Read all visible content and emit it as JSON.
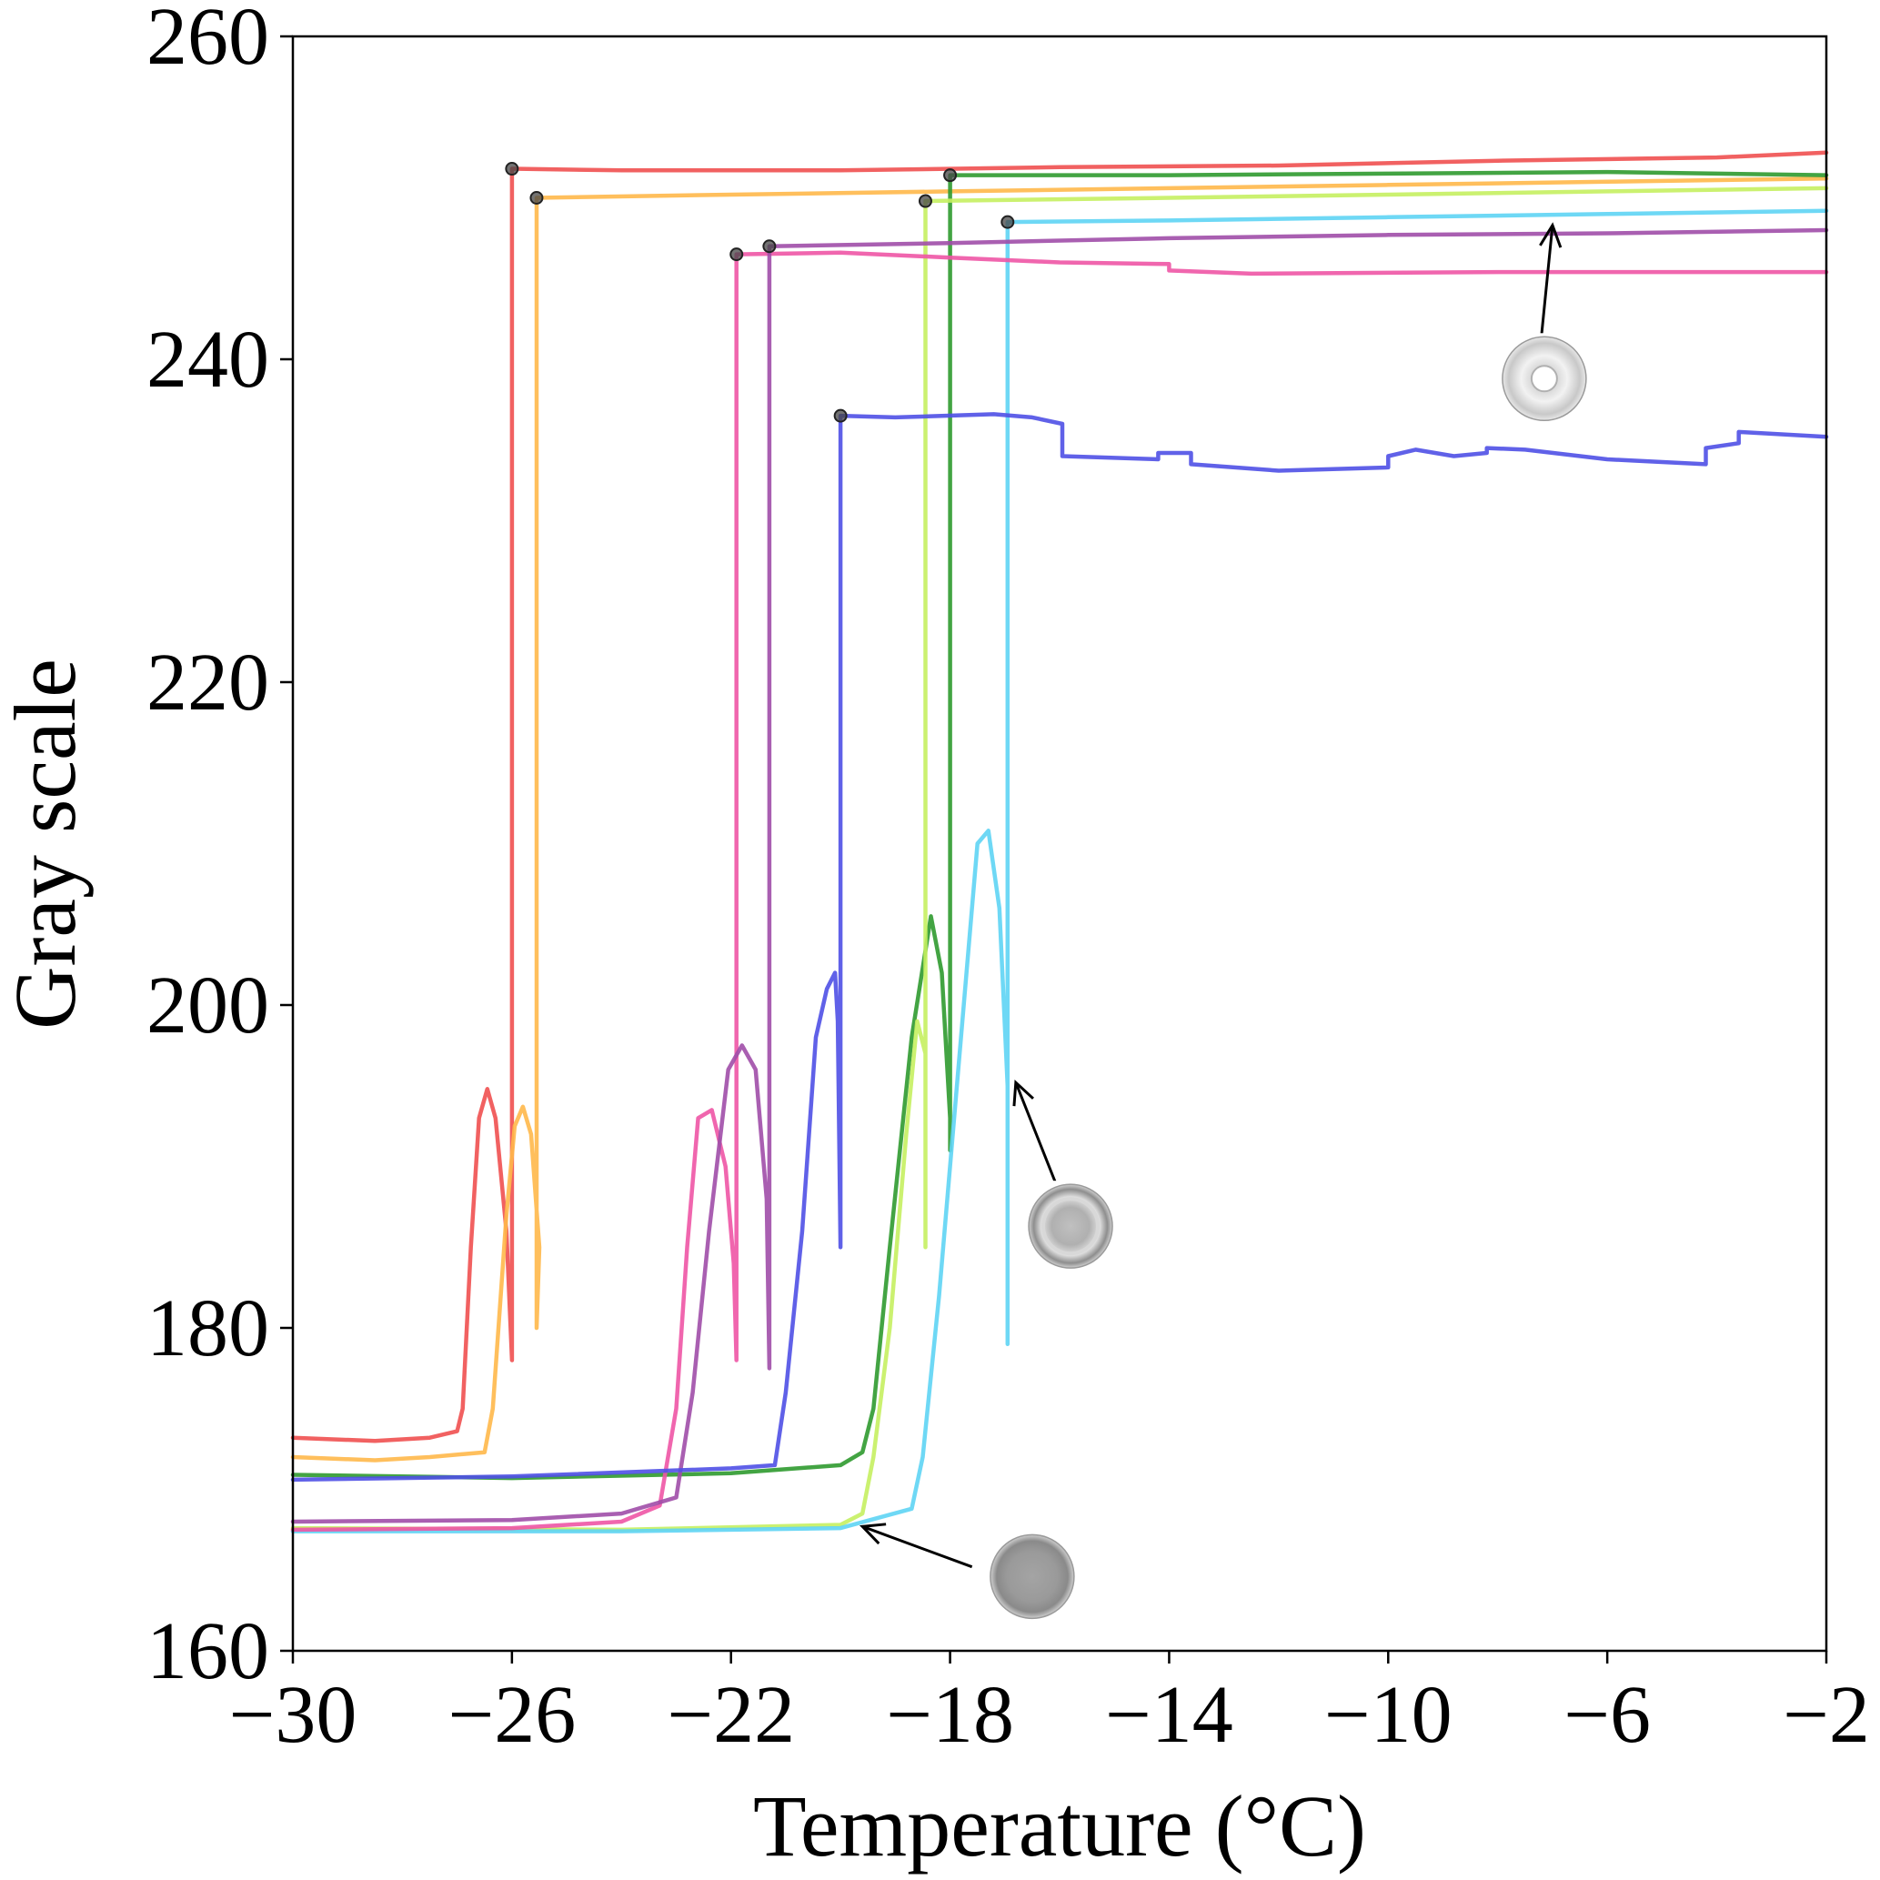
{
  "chart_data": {
    "type": "line",
    "xlabel": "Temperature (°C)",
    "ylabel": "Gray scale",
    "xlim": [
      -30,
      -2
    ],
    "ylim": [
      160,
      260
    ],
    "xticks": [
      -30,
      -26,
      -22,
      -18,
      -14,
      -10,
      -6,
      -2
    ],
    "xtick_labels": [
      "−30",
      "−26",
      "−22",
      "−18",
      "−14",
      "−10",
      "−6",
      "−2"
    ],
    "yticks": [
      160,
      180,
      200,
      220,
      240,
      260
    ],
    "ytick_labels": [
      "160",
      "180",
      "200",
      "220",
      "240",
      "260"
    ],
    "grid": false,
    "legend": false,
    "series": [
      {
        "color": "#f05050",
        "points": [
          [
            -30,
            173.2
          ],
          [
            -28.5,
            173.0
          ],
          [
            -27.5,
            173.2
          ],
          [
            -27.0,
            173.6
          ],
          [
            -26.9,
            175
          ],
          [
            -26.75,
            185
          ],
          [
            -26.6,
            193
          ],
          [
            -26.45,
            194.8
          ],
          [
            -26.3,
            193
          ],
          [
            -26.1,
            186
          ],
          [
            -26.0,
            178
          ],
          [
            -26.0,
            251.8
          ],
          [
            -24,
            251.7
          ],
          [
            -20,
            251.7
          ],
          [
            -16,
            251.9
          ],
          [
            -12,
            252.0
          ],
          [
            -8,
            252.3
          ],
          [
            -4,
            252.5
          ],
          [
            -2,
            252.8
          ]
        ],
        "freeze_point": [
          -26.0,
          251.8
        ]
      },
      {
        "color": "#ffb84a",
        "points": [
          [
            -30,
            172.0
          ],
          [
            -28.5,
            171.8
          ],
          [
            -27.5,
            172.0
          ],
          [
            -26.5,
            172.3
          ],
          [
            -26.35,
            175
          ],
          [
            -26.1,
            187
          ],
          [
            -25.95,
            192.5
          ],
          [
            -25.8,
            193.7
          ],
          [
            -25.65,
            192
          ],
          [
            -25.5,
            185
          ],
          [
            -25.55,
            180
          ],
          [
            -25.55,
            250.0
          ],
          [
            -22,
            250.2
          ],
          [
            -18,
            250.4
          ],
          [
            -14,
            250.6
          ],
          [
            -10,
            250.8
          ],
          [
            -6,
            251.0
          ],
          [
            -2,
            251.2
          ]
        ],
        "freeze_point": [
          -25.55,
          250.0
        ]
      },
      {
        "color": "#2f9a2f",
        "points": [
          [
            -30,
            170.9
          ],
          [
            -26,
            170.7
          ],
          [
            -22,
            171.0
          ],
          [
            -20,
            171.5
          ],
          [
            -19.6,
            172.3
          ],
          [
            -19.4,
            175
          ],
          [
            -19.1,
            185
          ],
          [
            -18.7,
            198
          ],
          [
            -18.35,
            205.5
          ],
          [
            -18.15,
            202
          ],
          [
            -18.0,
            193
          ],
          [
            -18.0,
            191
          ],
          [
            -18.0,
            251.4
          ],
          [
            -14,
            251.4
          ],
          [
            -10,
            251.5
          ],
          [
            -6,
            251.6
          ],
          [
            -2,
            251.4
          ]
        ],
        "freeze_point": [
          -18.0,
          251.4
        ]
      },
      {
        "color": "#c5f060",
        "points": [
          [
            -30,
            167.6
          ],
          [
            -24,
            167.5
          ],
          [
            -20,
            167.8
          ],
          [
            -19.6,
            168.5
          ],
          [
            -19.4,
            172
          ],
          [
            -19.1,
            180
          ],
          [
            -18.8,
            192
          ],
          [
            -18.6,
            199
          ],
          [
            -18.45,
            197
          ],
          [
            -18.45,
            185
          ],
          [
            -18.45,
            249.8
          ],
          [
            -14,
            250.0
          ],
          [
            -10,
            250.2
          ],
          [
            -6,
            250.4
          ],
          [
            -2,
            250.6
          ]
        ],
        "freeze_point": [
          -18.45,
          249.8
        ]
      },
      {
        "color": "#5ed4f4",
        "points": [
          [
            -30,
            167.4
          ],
          [
            -24,
            167.4
          ],
          [
            -20,
            167.6
          ],
          [
            -18.7,
            168.8
          ],
          [
            -18.5,
            172
          ],
          [
            -18.2,
            182
          ],
          [
            -17.8,
            198
          ],
          [
            -17.5,
            210
          ],
          [
            -17.3,
            210.8
          ],
          [
            -17.1,
            206
          ],
          [
            -16.95,
            195
          ],
          [
            -16.95,
            179
          ],
          [
            -16.95,
            248.5
          ],
          [
            -14,
            248.6
          ],
          [
            -10,
            248.8
          ],
          [
            -6,
            249.0
          ],
          [
            -2,
            249.2
          ]
        ],
        "freeze_point": [
          -16.95,
          248.5
        ]
      },
      {
        "color": "#ee55a5",
        "points": [
          [
            -30,
            167.5
          ],
          [
            -26,
            167.6
          ],
          [
            -24,
            168.0
          ],
          [
            -23.3,
            169
          ],
          [
            -23.0,
            175
          ],
          [
            -22.8,
            185
          ],
          [
            -22.6,
            193
          ],
          [
            -22.35,
            193.5
          ],
          [
            -22.1,
            190
          ],
          [
            -21.95,
            184
          ],
          [
            -21.9,
            178
          ],
          [
            -21.9,
            246.5
          ],
          [
            -20,
            246.6
          ],
          [
            -18,
            246.3
          ],
          [
            -16,
            246.0
          ],
          [
            -14.0,
            245.9
          ],
          [
            -14.0,
            245.5
          ],
          [
            -12.5,
            245.3
          ],
          [
            -8,
            245.4
          ],
          [
            -4,
            245.4
          ],
          [
            -2,
            245.4
          ]
        ],
        "freeze_point": [
          -21.9,
          246.5
        ]
      },
      {
        "color": "#a04ea8",
        "points": [
          [
            -30,
            168.0
          ],
          [
            -26,
            168.1
          ],
          [
            -24,
            168.5
          ],
          [
            -23,
            169.5
          ],
          [
            -22.7,
            176
          ],
          [
            -22.4,
            186
          ],
          [
            -22.05,
            196
          ],
          [
            -21.8,
            197.5
          ],
          [
            -21.55,
            196
          ],
          [
            -21.35,
            188
          ],
          [
            -21.3,
            177.5
          ],
          [
            -21.3,
            247.0
          ],
          [
            -18,
            247.2
          ],
          [
            -14,
            247.5
          ],
          [
            -10,
            247.7
          ],
          [
            -6,
            247.8
          ],
          [
            -2,
            248.0
          ]
        ],
        "freeze_point": [
          -21.3,
          247.0
        ]
      },
      {
        "color": "#4f50e6",
        "points": [
          [
            -30,
            170.6
          ],
          [
            -26,
            170.8
          ],
          [
            -22,
            171.3
          ],
          [
            -21.2,
            171.5
          ],
          [
            -21.0,
            176
          ],
          [
            -20.7,
            186
          ],
          [
            -20.45,
            198
          ],
          [
            -20.25,
            201
          ],
          [
            -20.1,
            202
          ],
          [
            -20.05,
            199
          ],
          [
            -20.0,
            185
          ],
          [
            -20.0,
            236.5
          ],
          [
            -19,
            236.4
          ],
          [
            -17.2,
            236.6
          ],
          [
            -16.5,
            236.4
          ],
          [
            -15.95,
            236.0
          ],
          [
            -15.95,
            234.0
          ],
          [
            -14.2,
            233.8
          ],
          [
            -14.2,
            234.2
          ],
          [
            -13.6,
            234.2
          ],
          [
            -13.6,
            233.5
          ],
          [
            -12,
            233.1
          ],
          [
            -10.0,
            233.3
          ],
          [
            -10.0,
            234.0
          ],
          [
            -9.5,
            234.4
          ],
          [
            -8.8,
            234.0
          ],
          [
            -8.2,
            234.2
          ],
          [
            -8.2,
            234.5
          ],
          [
            -7.5,
            234.4
          ],
          [
            -6,
            233.8
          ],
          [
            -4.2,
            233.5
          ],
          [
            -4.2,
            234.5
          ],
          [
            -3.6,
            234.8
          ],
          [
            -3.6,
            235.5
          ],
          [
            -2,
            235.2
          ]
        ],
        "freeze_point": [
          -20.0,
          236.5
        ]
      }
    ],
    "annotations": [
      {
        "type": "arrow",
        "from": [
          -7.2,
          241.5
        ],
        "to": [
          -7.0,
          248.3
        ]
      },
      {
        "type": "arrow",
        "from": [
          -15.9,
          187.5
        ],
        "to": [
          -16.8,
          195.2
        ]
      },
      {
        "type": "arrow",
        "from": [
          -17.6,
          165.2
        ],
        "to": [
          -19.6,
          167.7
        ]
      }
    ],
    "insets": [
      {
        "name": "frozen-droplet",
        "center": [
          -7.15,
          238.8
        ],
        "style": "frozen"
      },
      {
        "name": "freezing-droplet",
        "center": [
          -15.8,
          186.3
        ],
        "style": "freezing"
      },
      {
        "name": "liquid-droplet",
        "center": [
          -16.5,
          164.6
        ],
        "style": "liquid"
      }
    ]
  }
}
